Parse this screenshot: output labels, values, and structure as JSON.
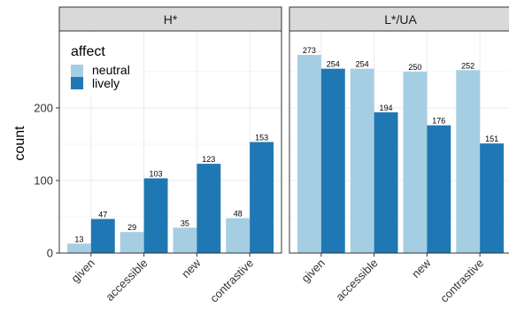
{
  "chart_data": {
    "type": "bar",
    "ylabel": "count",
    "ylim": [
      0,
      306
    ],
    "yticks": [
      0,
      100,
      200
    ],
    "categories": [
      "given",
      "accessible",
      "new",
      "contrastive"
    ],
    "legend": {
      "title": "affect",
      "position": "top-left",
      "entries": [
        "neutral",
        "lively"
      ]
    },
    "colors": {
      "neutral": "#a6cee3",
      "lively": "#1f78b4",
      "strip": "#d9d9d9",
      "grid": "#ebebeb"
    },
    "grid": true,
    "panels": [
      {
        "title": "H*",
        "series": [
          {
            "name": "neutral",
            "values": [
              13,
              29,
              35,
              48
            ]
          },
          {
            "name": "lively",
            "values": [
              47,
              103,
              123,
              153
            ]
          }
        ]
      },
      {
        "title": "L*/UA",
        "series": [
          {
            "name": "neutral",
            "values": [
              273,
              254,
              250,
              252
            ]
          },
          {
            "name": "lively",
            "values": [
              254,
              194,
              176,
              151
            ]
          }
        ]
      }
    ]
  }
}
